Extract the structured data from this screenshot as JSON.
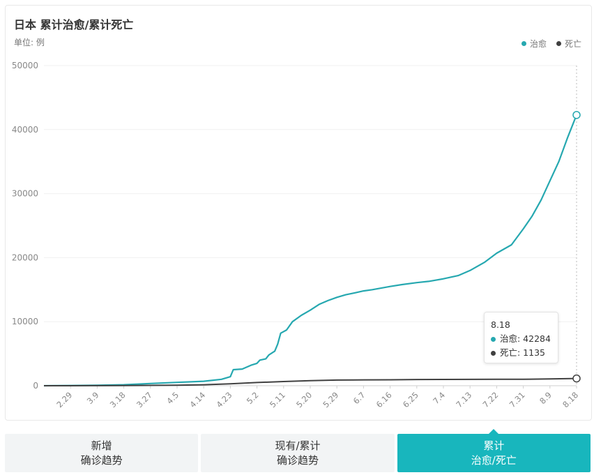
{
  "header": {
    "title": "日本 累计治愈/累计死亡",
    "unit": "单位: 例"
  },
  "colors": {
    "cured": "#26a8b0",
    "death": "#404040",
    "active_tab": "#18b6bd"
  },
  "tooltip": {
    "date": "8.18",
    "cured_text": "治愈: 42284",
    "death_text": "死亡: 1135"
  },
  "tabs": [
    {
      "line1": "新增",
      "line2": "确诊趋势",
      "active": false
    },
    {
      "line1": "现有/累计",
      "line2": "确诊趋势",
      "active": false
    },
    {
      "line1": "累计",
      "line2": "治愈/死亡",
      "active": true
    }
  ],
  "chart_data": {
    "type": "line",
    "ylim": [
      0,
      50000
    ],
    "y_ticks": [
      0,
      10000,
      20000,
      30000,
      40000,
      50000
    ],
    "x_tick_labels": [
      "2.29",
      "3.9",
      "3.18",
      "3.27",
      "4.5",
      "4.14",
      "4.23",
      "5.2",
      "5.11",
      "5.20",
      "5.29",
      "6.7",
      "6.16",
      "6.25",
      "7.4",
      "7.13",
      "7.22",
      "7.31",
      "8.9",
      "8.18"
    ],
    "legend_position": "top-right",
    "highlight_date": "8.18",
    "series": [
      {
        "name": "治愈",
        "color": "#26a8b0",
        "points": [
          [
            "2.20",
            0
          ],
          [
            "2.29",
            30
          ],
          [
            "3.9",
            70
          ],
          [
            "3.18",
            150
          ],
          [
            "3.27",
            350
          ],
          [
            "4.5",
            520
          ],
          [
            "4.14",
            700
          ],
          [
            "4.20",
            1000
          ],
          [
            "4.23",
            1400
          ],
          [
            "4.24",
            2500
          ],
          [
            "4.27",
            2600
          ],
          [
            "4.30",
            3200
          ],
          [
            "5.2",
            3500
          ],
          [
            "5.3",
            4000
          ],
          [
            "5.5",
            4200
          ],
          [
            "5.6",
            4800
          ],
          [
            "5.8",
            5400
          ],
          [
            "5.9",
            6500
          ],
          [
            "5.10",
            8200
          ],
          [
            "5.12",
            8700
          ],
          [
            "5.14",
            10000
          ],
          [
            "5.17",
            11000
          ],
          [
            "5.20",
            11800
          ],
          [
            "5.23",
            12700
          ],
          [
            "5.26",
            13300
          ],
          [
            "5.29",
            13800
          ],
          [
            "6.1",
            14200
          ],
          [
            "6.4",
            14500
          ],
          [
            "6.7",
            14800
          ],
          [
            "6.10",
            15000
          ],
          [
            "6.16",
            15500
          ],
          [
            "6.20",
            15800
          ],
          [
            "6.25",
            16100
          ],
          [
            "6.29",
            16300
          ],
          [
            "7.4",
            16700
          ],
          [
            "7.9",
            17200
          ],
          [
            "7.13",
            18000
          ],
          [
            "7.18",
            19300
          ],
          [
            "7.22",
            20700
          ],
          [
            "7.27",
            22000
          ],
          [
            "7.31",
            24500
          ],
          [
            "8.3",
            26500
          ],
          [
            "8.6",
            29000
          ],
          [
            "8.9",
            32000
          ],
          [
            "8.12",
            35000
          ],
          [
            "8.15",
            38800
          ],
          [
            "8.18",
            42284
          ]
        ]
      },
      {
        "name": "死亡",
        "color": "#404040",
        "points": [
          [
            "2.20",
            1
          ],
          [
            "2.29",
            5
          ],
          [
            "3.9",
            10
          ],
          [
            "3.18",
            30
          ],
          [
            "3.27",
            50
          ],
          [
            "4.5",
            80
          ],
          [
            "4.14",
            150
          ],
          [
            "4.23",
            300
          ],
          [
            "5.2",
            500
          ],
          [
            "5.11",
            650
          ],
          [
            "5.20",
            780
          ],
          [
            "5.29",
            880
          ],
          [
            "6.7",
            910
          ],
          [
            "6.16",
            930
          ],
          [
            "6.25",
            970
          ],
          [
            "7.4",
            980
          ],
          [
            "7.13",
            990
          ],
          [
            "7.22",
            1000
          ],
          [
            "7.31",
            1010
          ],
          [
            "8.9",
            1060
          ],
          [
            "8.18",
            1135
          ]
        ]
      }
    ]
  }
}
